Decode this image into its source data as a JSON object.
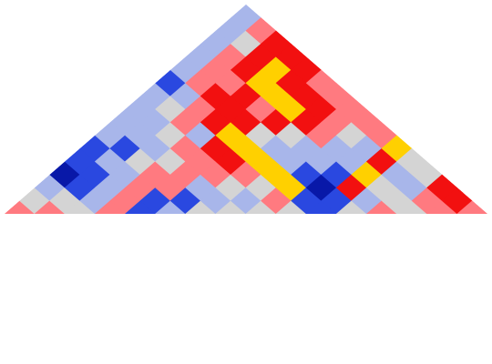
{
  "chart_data": {
    "type": "heatmap",
    "shape": "triangle",
    "colorscale": [
      {
        "value": -3,
        "color": "#0818a8"
      },
      {
        "value": -2,
        "color": "#2a48e0"
      },
      {
        "value": -1,
        "color": "#a8b6ea"
      },
      {
        "value": 0,
        "color": "#d4d4d4"
      },
      {
        "value": 1,
        "color": "#ff7a80"
      },
      {
        "value": 2,
        "color": "#f21010"
      },
      {
        "value": 3,
        "color": "#ffd000"
      }
    ],
    "z": [
      [
        1,
        0,
        -1,
        -3,
        -2,
        -2,
        -1,
        -1,
        -1,
        -1,
        -2,
        -1,
        -1,
        -1,
        -1,
        -1
      ],
      [
        1,
        0,
        -2,
        -2,
        -1,
        -2,
        -1,
        -1,
        0,
        -1,
        1,
        1,
        1,
        0,
        1
      ],
      [
        0,
        -1,
        -1,
        -1,
        0,
        -1,
        0,
        1,
        1,
        2,
        1,
        2,
        2,
        2
      ],
      [
        1,
        1,
        1,
        1,
        0,
        1,
        -1,
        2,
        2,
        2,
        3,
        3,
        2
      ],
      [
        -2,
        -2,
        1,
        1,
        1,
        2,
        3,
        2,
        1,
        3,
        2,
        2
      ],
      [
        -1,
        -2,
        -1,
        1,
        2,
        3,
        0,
        2,
        3,
        2,
        1
      ],
      [
        0,
        -1,
        0,
        1,
        3,
        -1,
        0,
        2,
        2,
        1
      ],
      [
        0,
        -1,
        0,
        3,
        -1,
        -1,
        1,
        1,
        1
      ],
      [
        0,
        1,
        3,
        -2,
        -1,
        -1,
        0,
        1
      ],
      [
        0,
        -2,
        -3,
        -2,
        -1,
        -1,
        1
      ],
      [
        -2,
        -2,
        2,
        3,
        2,
        3
      ],
      [
        0,
        -1,
        0,
        -1,
        0
      ],
      [
        1,
        0,
        -1,
        0
      ],
      [
        0,
        1,
        2
      ],
      [
        1,
        2
      ],
      [
        1
      ]
    ]
  }
}
